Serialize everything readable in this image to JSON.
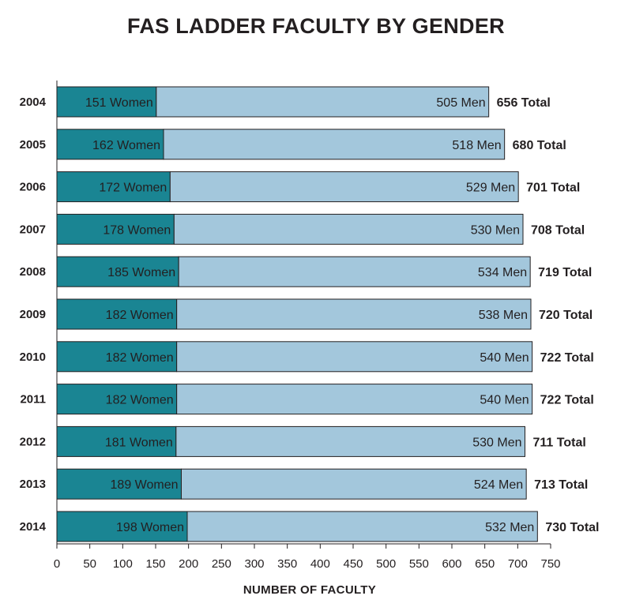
{
  "chart_data": {
    "type": "bar",
    "orientation": "horizontal",
    "stacked": true,
    "title": "FAS LADDER FACULTY BY GENDER",
    "xlabel": "NUMBER OF FACULTY",
    "ylabel": "",
    "xlim": [
      0,
      750
    ],
    "x_ticks": [
      0,
      50,
      100,
      150,
      200,
      250,
      300,
      350,
      400,
      450,
      500,
      550,
      600,
      650,
      700,
      750
    ],
    "grid": false,
    "legend": "none",
    "colors": {
      "women": "#1a8593",
      "men": "#a3c7dc",
      "outline": "#231f20"
    },
    "categories": [
      "2004",
      "2005",
      "2006",
      "2007",
      "2008",
      "2009",
      "2010",
      "2011",
      "2012",
      "2013",
      "2014"
    ],
    "series": [
      {
        "values": [
          151,
          162,
          172,
          178,
          185,
          182,
          182,
          182,
          181,
          189,
          198
        ],
        "labels": [
          "151 Women",
          "162 Women",
          "172 Women",
          "178 Women",
          "185 Women",
          "182 Women",
          "182 Women",
          "182 Women",
          "181 Women",
          "189 Women",
          "198 Women"
        ]
      },
      {
        "values": [
          505,
          518,
          529,
          530,
          534,
          538,
          540,
          540,
          530,
          524,
          532
        ],
        "labels": [
          "505 Men",
          "518 Men",
          "529 Men",
          "530 Men",
          "534 Men",
          "538 Men",
          "540 Men",
          "540 Men",
          "530 Men",
          "524 Men",
          "532 Men"
        ]
      }
    ],
    "totals": [
      656,
      680,
      701,
      708,
      719,
      720,
      722,
      722,
      711,
      713,
      730
    ],
    "total_labels": [
      "656 Total",
      "680 Total",
      "701 Total",
      "708 Total",
      "719 Total",
      "720 Total",
      "722 Total",
      "722 Total",
      "711 Total",
      "713 Total",
      "730 Total"
    ]
  }
}
